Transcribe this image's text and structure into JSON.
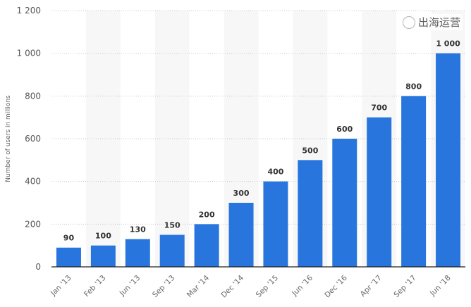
{
  "chart_data": {
    "type": "bar",
    "title": "",
    "xlabel": "",
    "ylabel": "Number of users in millions",
    "ylim": [
      0,
      1200
    ],
    "yticks": [
      0,
      200,
      400,
      600,
      800,
      1000,
      1200
    ],
    "ytick_labels": [
      "0",
      "200",
      "400",
      "600",
      "800",
      "1 000",
      "1 200"
    ],
    "categories": [
      "Jan '13",
      "Feb '13",
      "Jun '13",
      "Sep '13",
      "Mar '14",
      "Dec '14",
      "Sep '15",
      "Jun '16",
      "Dec '16",
      "Apr '17",
      "Sep '17",
      "Jun '18"
    ],
    "values": [
      90,
      100,
      130,
      150,
      200,
      300,
      400,
      500,
      600,
      700,
      800,
      1000
    ],
    "data_labels": [
      "90",
      "100",
      "130",
      "150",
      "200",
      "300",
      "400",
      "500",
      "600",
      "700",
      "800",
      "1 000"
    ],
    "grid": true,
    "bar_color": "#2876dd"
  },
  "watermark": "出海运营"
}
